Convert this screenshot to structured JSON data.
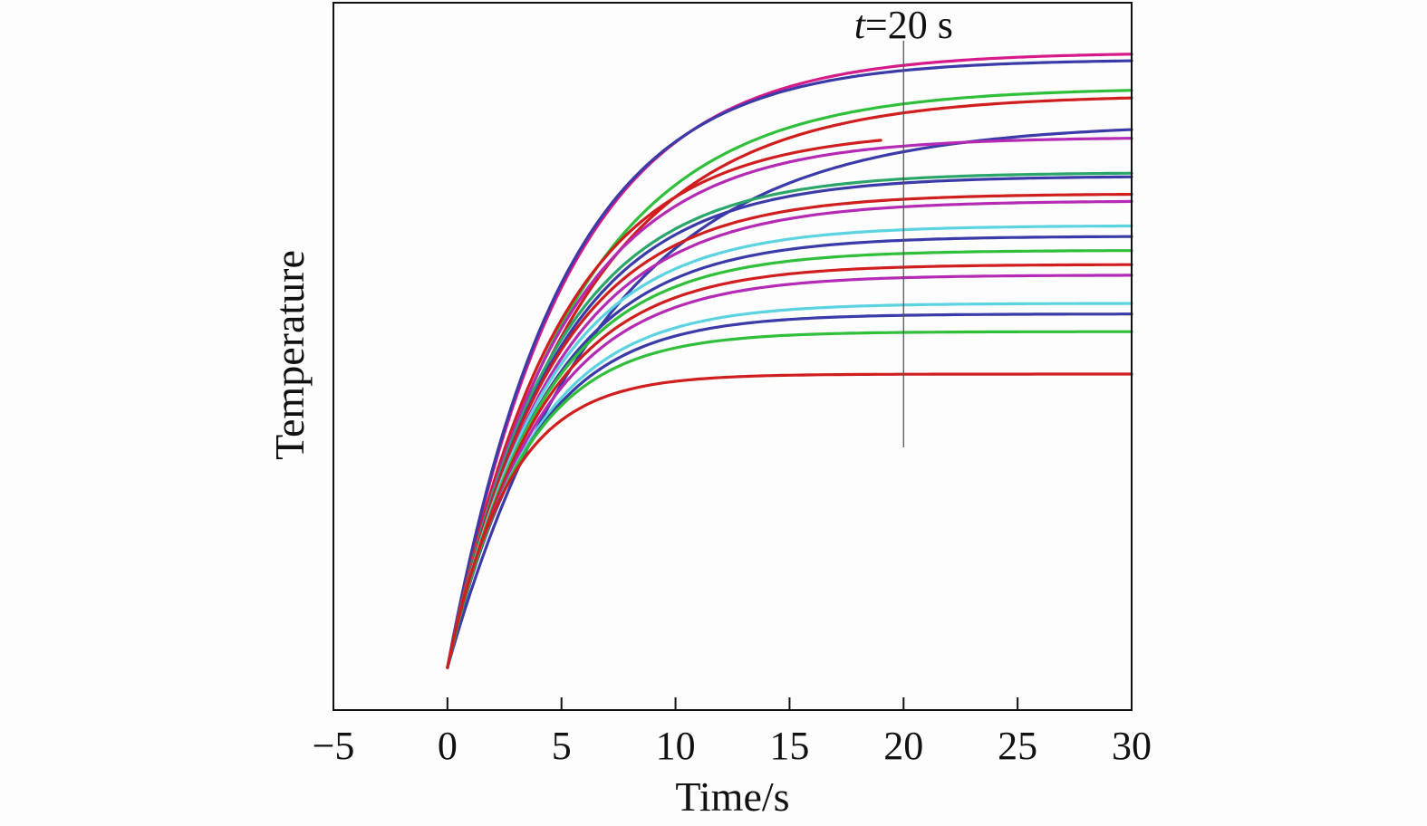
{
  "chart_data": {
    "type": "line",
    "title": "",
    "xlabel": "Time/s",
    "ylabel": "Temperature",
    "xlim": [
      -5,
      30
    ],
    "ylim": [
      0,
      100
    ],
    "x_ticks": [
      -5,
      0,
      5,
      10,
      15,
      20,
      25,
      30
    ],
    "x_tick_labels": [
      "−5",
      "0",
      "5",
      "10",
      "15",
      "20",
      "25",
      "30"
    ],
    "y_ticks_shown": false,
    "grid": false,
    "legend": "none",
    "series_model": "y = 6 + (plateau − 6)·(1 − e^(−t/tau)); curves are read as rises from a common start at t = 0 to different plateaus",
    "series": [
      {
        "color": "#d61a8a",
        "plateau": 93,
        "tau": 5.2,
        "t_end": 30
      },
      {
        "color": "#3a3aa8",
        "plateau": 92,
        "tau": 5.0,
        "t_end": 30
      },
      {
        "color": "#2fbf3a",
        "plateau": 88,
        "tau": 5.6,
        "t_end": 30
      },
      {
        "color": "#d01e1e",
        "plateau": 87,
        "tau": 5.8,
        "t_end": 30
      },
      {
        "color": "#3a3aa8",
        "plateau": 83,
        "tau": 6.8,
        "t_end": 30
      },
      {
        "color": "#d01e1e",
        "plateau": 82,
        "tau": 4.8,
        "t_end": 19
      },
      {
        "color": "#b42ab4",
        "plateau": 81,
        "tau": 4.9,
        "t_end": 30
      },
      {
        "color": "#2aa66a",
        "plateau": 76,
        "tau": 4.6,
        "t_end": 30
      },
      {
        "color": "#3a3aa8",
        "plateau": 75.5,
        "tau": 4.7,
        "t_end": 30
      },
      {
        "color": "#d01e1e",
        "plateau": 73,
        "tau": 4.5,
        "t_end": 30
      },
      {
        "color": "#b42ab4",
        "plateau": 72,
        "tau": 4.6,
        "t_end": 30
      },
      {
        "color": "#5bd3e0",
        "plateau": 68.5,
        "tau": 4.3,
        "t_end": 30
      },
      {
        "color": "#3a3aa8",
        "plateau": 67,
        "tau": 4.3,
        "t_end": 30
      },
      {
        "color": "#2fbf3a",
        "plateau": 65,
        "tau": 4.1,
        "t_end": 30
      },
      {
        "color": "#d01e1e",
        "plateau": 63,
        "tau": 4.0,
        "t_end": 30
      },
      {
        "color": "#b42ab4",
        "plateau": 61.5,
        "tau": 4.0,
        "t_end": 30
      },
      {
        "color": "#5bd3e0",
        "plateau": 57.5,
        "tau": 3.7,
        "t_end": 30
      },
      {
        "color": "#3a3aa8",
        "plateau": 56,
        "tau": 3.6,
        "t_end": 30
      },
      {
        "color": "#2fbf3a",
        "plateau": 53.5,
        "tau": 3.3,
        "t_end": 30
      },
      {
        "color": "#d01e1e",
        "plateau": 47.5,
        "tau": 2.7,
        "t_end": 30
      }
    ],
    "annotations": [
      {
        "text_italic": "t",
        "text_rest": "=20 s",
        "x": 20
      }
    ],
    "colors": {
      "axis": "#111111",
      "marker_line": "#555555",
      "background": "#fdfdfd"
    }
  }
}
